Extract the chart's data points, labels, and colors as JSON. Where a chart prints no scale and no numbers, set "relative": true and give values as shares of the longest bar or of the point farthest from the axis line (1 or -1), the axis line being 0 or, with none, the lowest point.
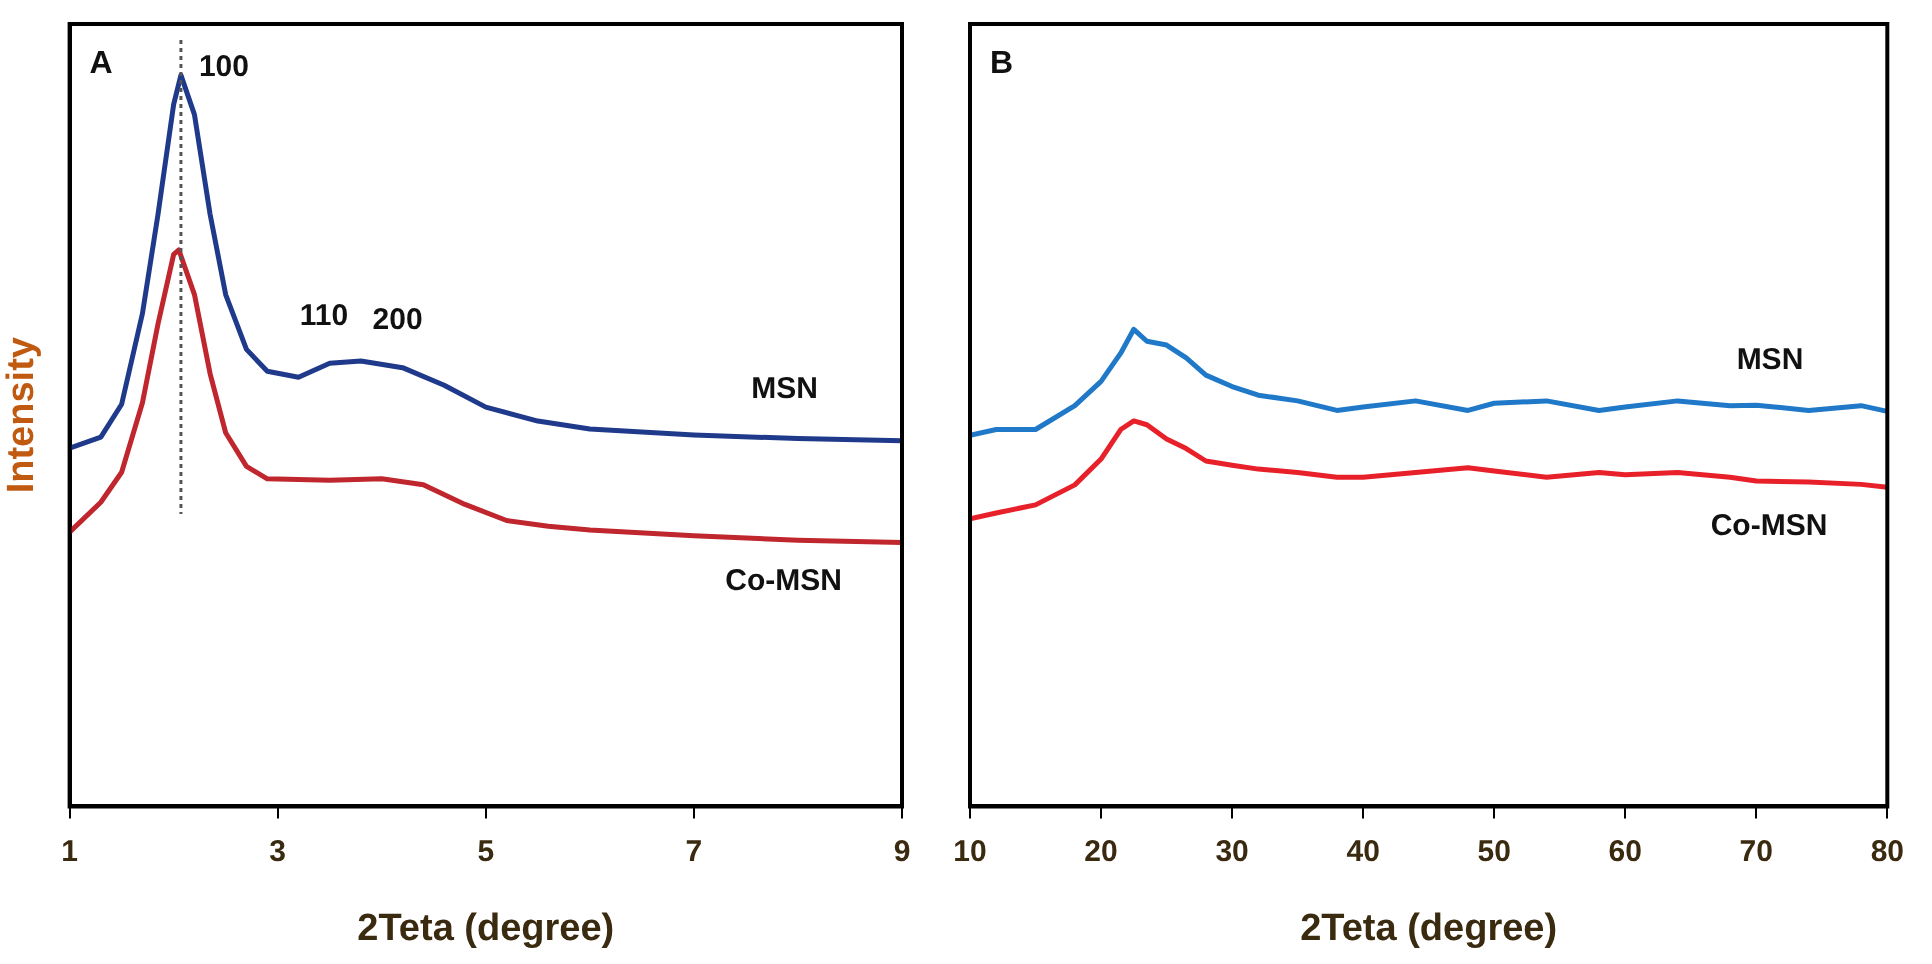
{
  "chart_data": [
    {
      "type": "line",
      "title": "A",
      "xlabel": "2Teta (degree)",
      "ylabel": "Intensity",
      "relative": true,
      "xlim": [
        1,
        9
      ],
      "xticks": [
        1,
        3,
        5,
        7,
        9
      ],
      "tick_labels": "x",
      "legend": false,
      "grid": false,
      "marker": "none",
      "series": [
        {
          "name": "MSN",
          "color": "#1f3a8a",
          "x": [
            1,
            1.3,
            1.5,
            1.7,
            1.85,
            2.0,
            2.07,
            2.2,
            2.35,
            2.5,
            2.7,
            2.9,
            3.2,
            3.5,
            3.8,
            4.2,
            4.6,
            5.0,
            5.5,
            6,
            7,
            8,
            9
          ],
          "values": [
            0.49,
            0.505,
            0.55,
            0.674,
            0.81,
            0.96,
            1,
            0.946,
            0.81,
            0.7,
            0.625,
            0.595,
            0.587,
            0.606,
            0.609,
            0.6,
            0.576,
            0.546,
            0.527,
            0.516,
            0.508,
            0.503,
            0.5
          ]
        },
        {
          "name": "Co-MSN",
          "color": "#c0262d",
          "x": [
            1,
            1.3,
            1.5,
            1.7,
            1.85,
            2.0,
            2.05,
            2.2,
            2.35,
            2.5,
            2.7,
            2.9,
            3.5,
            4.0,
            4.4,
            4.8,
            5.2,
            5.6,
            6,
            7,
            8,
            9
          ],
          "values": [
            0.375,
            0.416,
            0.457,
            0.552,
            0.66,
            0.755,
            0.761,
            0.7,
            0.592,
            0.511,
            0.465,
            0.448,
            0.446,
            0.448,
            0.44,
            0.413,
            0.391,
            0.383,
            0.378,
            0.37,
            0.364,
            0.361
          ]
        }
      ],
      "ref_lines": [
        {
          "axis": "x",
          "value": 2.07,
          "color": "#555555",
          "line_style": "dotted"
        }
      ],
      "annotations": [
        {
          "text": "100",
          "x": 2.07,
          "y": 1
        },
        {
          "text": "110",
          "x": 3.5,
          "y": 0.606
        },
        {
          "text": "200",
          "x": 4.2,
          "y": 0.6
        }
      ]
    },
    {
      "type": "line",
      "title": "B",
      "xlabel": "2Teta (degree)",
      "relative": true,
      "xlim": [
        10,
        80
      ],
      "xticks": [
        10,
        20,
        30,
        40,
        50,
        60,
        70,
        80
      ],
      "tick_labels": "x",
      "legend": false,
      "grid": false,
      "marker": "none",
      "series": [
        {
          "name": "MSN",
          "color": "#1f78c8",
          "x": [
            10,
            12,
            15,
            18,
            20,
            21.5,
            22.5,
            23.5,
            25,
            26.5,
            28,
            30,
            32,
            35,
            38,
            40,
            44,
            48,
            50,
            54,
            58,
            60,
            64,
            68,
            70,
            74,
            78,
            80
          ],
          "values": [
            0.778,
            0.79,
            0.79,
            0.84,
            0.891,
            0.95,
            1,
            0.975,
            0.967,
            0.94,
            0.904,
            0.88,
            0.862,
            0.85,
            0.83,
            0.837,
            0.85,
            0.83,
            0.845,
            0.85,
            0.83,
            0.837,
            0.85,
            0.84,
            0.841,
            0.83,
            0.84,
            0.828
          ]
        },
        {
          "name": "Co-MSN",
          "color": "#e8202a",
          "x": [
            10,
            12,
            15,
            18,
            20,
            21.5,
            22.5,
            23.5,
            25,
            26.5,
            28,
            30,
            32,
            35,
            38,
            40,
            44,
            48,
            50,
            54,
            58,
            60,
            64,
            68,
            70,
            74,
            78,
            80
          ],
          "values": [
            0.603,
            0.615,
            0.632,
            0.674,
            0.728,
            0.79,
            0.808,
            0.8,
            0.77,
            0.75,
            0.724,
            0.715,
            0.707,
            0.7,
            0.69,
            0.69,
            0.7,
            0.71,
            0.703,
            0.69,
            0.7,
            0.695,
            0.7,
            0.69,
            0.682,
            0.68,
            0.675,
            0.669
          ]
        }
      ]
    }
  ]
}
